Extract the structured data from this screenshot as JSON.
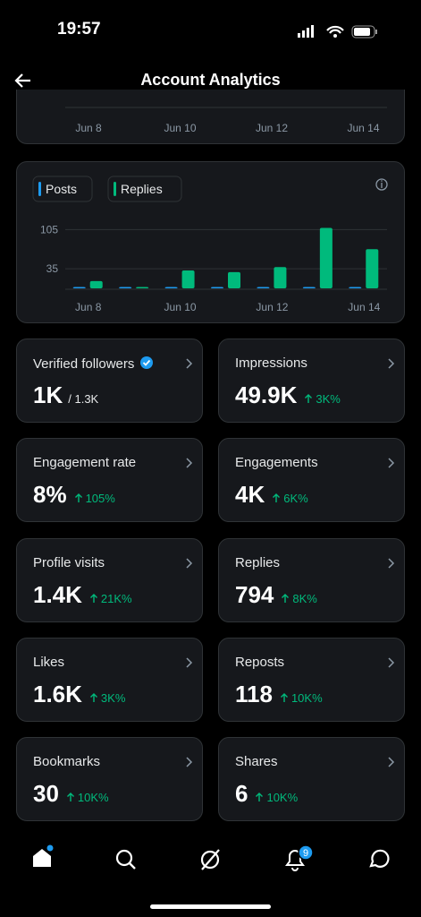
{
  "status_bar": {
    "time": "19:57"
  },
  "header": {
    "title": "Account Analytics"
  },
  "top_chart": {
    "x_labels": [
      "Jun 8",
      "Jun 10",
      "Jun 12",
      "Jun 14"
    ]
  },
  "chart_data": {
    "type": "bar",
    "categories": [
      "Jun 8",
      null,
      "Jun 10",
      null,
      "Jun 12",
      null,
      "Jun 14"
    ],
    "series": [
      {
        "name": "Posts",
        "color": "#1d9bf0",
        "values": [
          0,
          1,
          1,
          1,
          1,
          1,
          1
        ]
      },
      {
        "name": "Replies",
        "color": "#00ba7c",
        "values": [
          13,
          2,
          32,
          29,
          38,
          108,
          70
        ]
      }
    ],
    "ylim": [
      0,
      120
    ],
    "yticks": [
      35,
      105
    ],
    "grid": true
  },
  "metrics": [
    {
      "label": "Verified followers",
      "value": "1K",
      "total": "/ 1.3K"
    },
    {
      "label": "Impressions",
      "value": "49.9K",
      "change": "3K%"
    },
    {
      "label": "Engagement rate",
      "value": "8%",
      "change": "105%"
    },
    {
      "label": "Engagements",
      "value": "4K",
      "change": "6K%"
    },
    {
      "label": "Profile visits",
      "value": "1.4K",
      "change": "21K%"
    },
    {
      "label": "Replies",
      "value": "794",
      "change": "8K%"
    },
    {
      "label": "Likes",
      "value": "1.6K",
      "change": "3K%"
    },
    {
      "label": "Reposts",
      "value": "118",
      "change": "10K%"
    },
    {
      "label": "Bookmarks",
      "value": "30",
      "change": "10K%"
    },
    {
      "label": "Shares",
      "value": "6",
      "change": "10K%"
    }
  ],
  "nav": {
    "notification_badge": "9"
  }
}
